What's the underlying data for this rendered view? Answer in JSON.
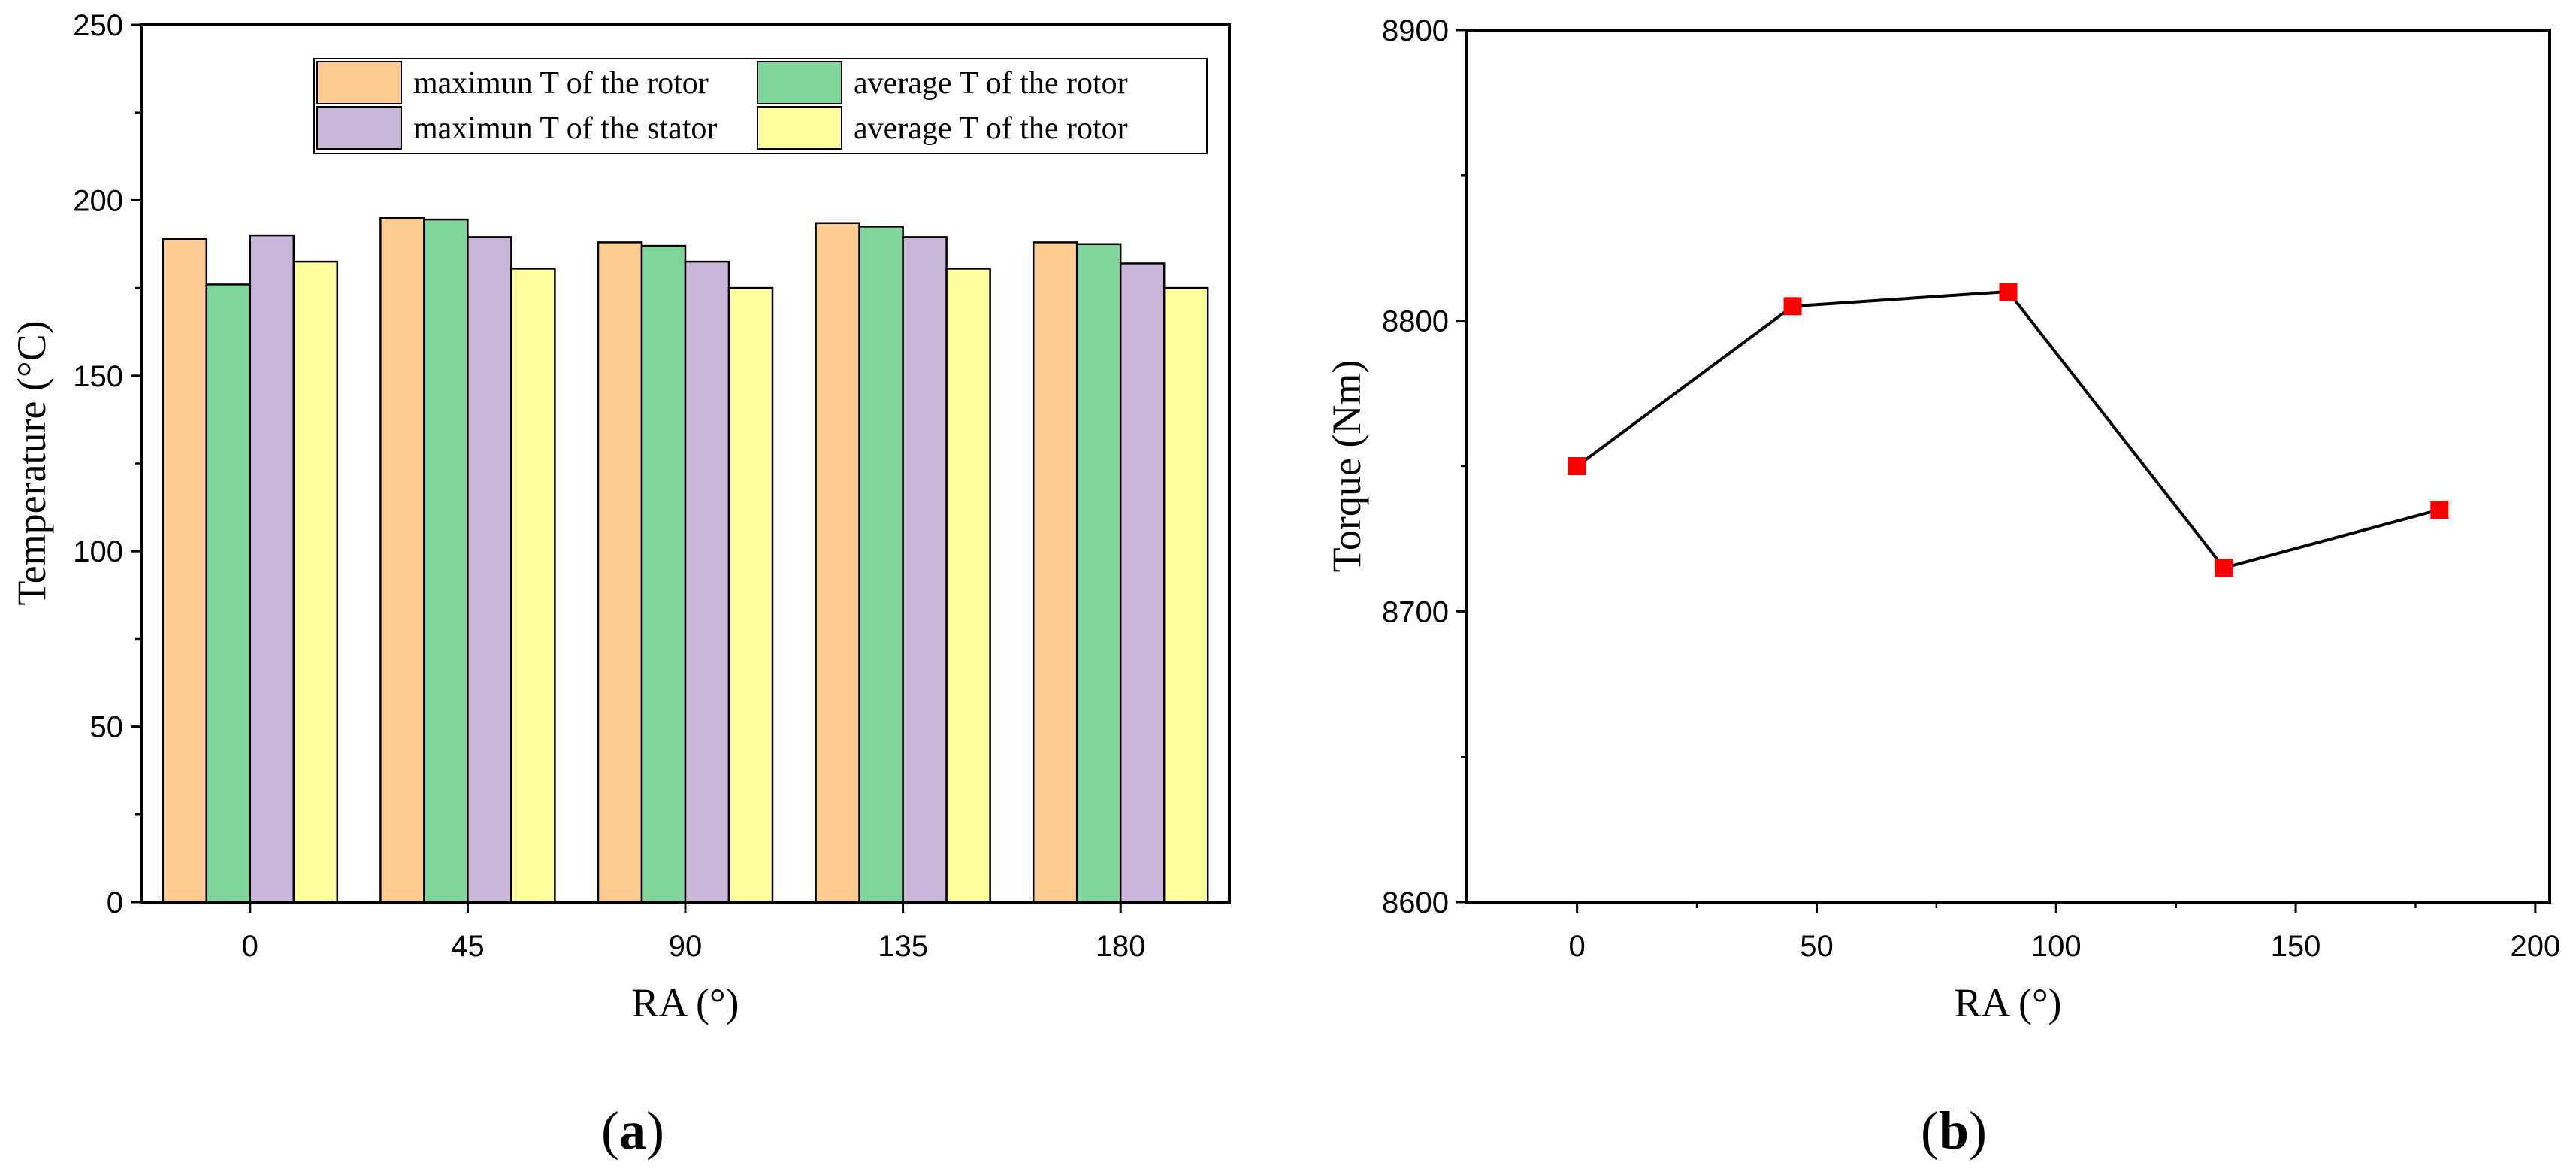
{
  "chart_data": [
    {
      "type": "bar",
      "title": "",
      "panel_label": "a",
      "xlabel": "RA (°)",
      "ylabel": "Temperature (°C)",
      "categories": [
        "0",
        "45",
        "90",
        "135",
        "180"
      ],
      "ylim": [
        0,
        250
      ],
      "yticks": [
        "0",
        "50",
        "100",
        "150",
        "200",
        "250"
      ],
      "legend_position": "top-right",
      "series": [
        {
          "name": "maximun T of the rotor",
          "color": "#FDCC90",
          "values": [
            189,
            195,
            188,
            193.5,
            188
          ]
        },
        {
          "name": "average T of the rotor",
          "color": "#7FD69A",
          "values": [
            176,
            194.5,
            187,
            192.5,
            187.5
          ]
        },
        {
          "name": "maximun T of the stator",
          "color": "#C9B5D8",
          "values": [
            190,
            189.5,
            182.5,
            189.5,
            182
          ]
        },
        {
          "name": "average T of the rotor",
          "color": "#FEFE9E",
          "values": [
            182.5,
            180.5,
            175,
            180.5,
            175
          ]
        }
      ]
    },
    {
      "type": "line",
      "title": "",
      "panel_label": "b",
      "xlabel": "RA (°)",
      "ylabel": "Torque (Nm)",
      "x": [
        0,
        45,
        90,
        135,
        180
      ],
      "y": [
        8750,
        8805,
        8810,
        8715,
        8735
      ],
      "xlim": [
        -23,
        203
      ],
      "ylim": [
        8600,
        8900
      ],
      "xticks": [
        "0",
        "50",
        "100",
        "150",
        "200"
      ],
      "yticks": [
        "8600",
        "8700",
        "8800",
        "8900"
      ],
      "line_color": "#000000",
      "marker_color": "#FF0000"
    }
  ]
}
